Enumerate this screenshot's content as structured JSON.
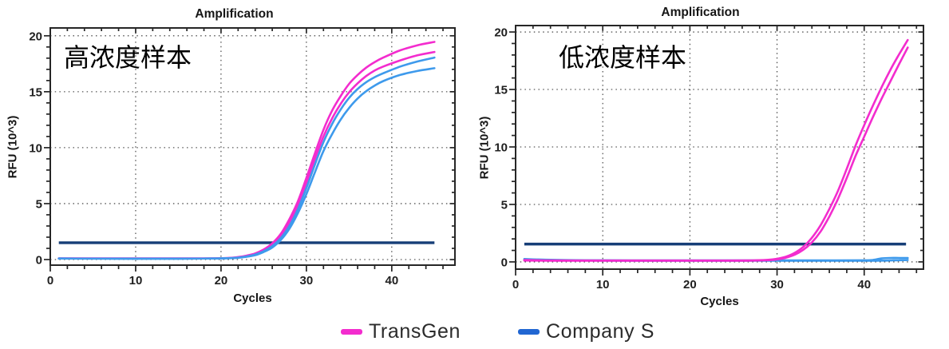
{
  "legend": {
    "items": [
      {
        "label": "TransGen",
        "color": "#f32cce"
      },
      {
        "label": "Company S",
        "color": "#2166d2"
      }
    ]
  },
  "chart_data": [
    {
      "type": "line",
      "title": "Amplification",
      "annotation": "高浓度样本",
      "xlabel": "Cycles",
      "ylabel": "RFU (10^3)",
      "xlim": [
        0,
        47.4
      ],
      "ylim": [
        -0.5,
        20.7
      ],
      "xticks": [
        0,
        10,
        20,
        30,
        40
      ],
      "yticks": [
        0,
        5,
        10,
        15,
        20
      ],
      "x_minor_step": 2,
      "y_minor_step": 1,
      "grid": "dotted-major",
      "threshold": {
        "y": 1.5,
        "x1": 1,
        "x2": 45,
        "color": "#163e77"
      },
      "series": [
        {
          "name": "TransGen rep 1",
          "group": "TransGen",
          "color": "#f32cce",
          "points": [
            [
              1,
              0.1
            ],
            [
              8,
              0.1
            ],
            [
              14,
              0.1
            ],
            [
              19,
              0.11
            ],
            [
              21,
              0.15
            ],
            [
              22,
              0.22
            ],
            [
              23,
              0.35
            ],
            [
              24,
              0.55
            ],
            [
              25,
              0.9
            ],
            [
              26,
              1.45
            ],
            [
              27,
              2.3
            ],
            [
              28,
              3.6
            ],
            [
              29,
              5.2
            ],
            [
              30,
              7.3
            ],
            [
              31,
              9.5
            ],
            [
              32,
              11.6
            ],
            [
              33,
              13.3
            ],
            [
              34,
              14.6
            ],
            [
              35,
              15.7
            ],
            [
              36,
              16.5
            ],
            [
              37,
              17.15
            ],
            [
              38,
              17.65
            ],
            [
              39,
              18.05
            ],
            [
              41,
              18.7
            ],
            [
              43,
              19.15
            ],
            [
              45,
              19.45
            ]
          ]
        },
        {
          "name": "TransGen rep 2",
          "group": "TransGen",
          "color": "#f32cce",
          "points": [
            [
              1,
              0.1
            ],
            [
              8,
              0.09
            ],
            [
              14,
              0.09
            ],
            [
              19,
              0.1
            ],
            [
              21,
              0.14
            ],
            [
              22,
              0.2
            ],
            [
              23,
              0.31
            ],
            [
              24,
              0.5
            ],
            [
              25,
              0.82
            ],
            [
              26,
              1.32
            ],
            [
              27,
              2.1
            ],
            [
              28,
              3.3
            ],
            [
              29,
              4.85
            ],
            [
              30,
              6.85
            ],
            [
              31,
              9.0
            ],
            [
              32,
              11.0
            ],
            [
              33,
              12.6
            ],
            [
              34,
              13.9
            ],
            [
              35,
              14.95
            ],
            [
              36,
              15.75
            ],
            [
              37,
              16.4
            ],
            [
              38,
              16.9
            ],
            [
              39,
              17.25
            ],
            [
              41,
              17.8
            ],
            [
              43,
              18.25
            ],
            [
              45,
              18.55
            ]
          ]
        },
        {
          "name": "Company S rep 1",
          "group": "Company S",
          "color": "#3e9aec",
          "points": [
            [
              1,
              0.09
            ],
            [
              8,
              0.08
            ],
            [
              14,
              0.08
            ],
            [
              19,
              0.09
            ],
            [
              21,
              0.13
            ],
            [
              22,
              0.18
            ],
            [
              23,
              0.28
            ],
            [
              24,
              0.45
            ],
            [
              25,
              0.74
            ],
            [
              26,
              1.2
            ],
            [
              27,
              1.92
            ],
            [
              28,
              3.0
            ],
            [
              29,
              4.5
            ],
            [
              30,
              6.4
            ],
            [
              31,
              8.5
            ],
            [
              32,
              10.5
            ],
            [
              33,
              12.1
            ],
            [
              34,
              13.4
            ],
            [
              35,
              14.45
            ],
            [
              36,
              15.25
            ],
            [
              37,
              15.85
            ],
            [
              38,
              16.3
            ],
            [
              39,
              16.65
            ],
            [
              41,
              17.25
            ],
            [
              43,
              17.7
            ],
            [
              45,
              18.05
            ]
          ]
        },
        {
          "name": "Company S rep 2",
          "group": "Company S",
          "color": "#3e9aec",
          "points": [
            [
              1,
              0.09
            ],
            [
              8,
              0.08
            ],
            [
              14,
              0.08
            ],
            [
              19,
              0.09
            ],
            [
              21,
              0.12
            ],
            [
              22,
              0.16
            ],
            [
              23,
              0.25
            ],
            [
              24,
              0.39
            ],
            [
              25,
              0.68
            ],
            [
              26,
              1.08
            ],
            [
              27,
              1.75
            ],
            [
              28,
              2.75
            ],
            [
              29,
              4.15
            ],
            [
              30,
              5.85
            ],
            [
              31,
              7.8
            ],
            [
              32,
              9.7
            ],
            [
              33,
              11.2
            ],
            [
              34,
              12.5
            ],
            [
              35,
              13.55
            ],
            [
              36,
              14.4
            ],
            [
              37,
              15.05
            ],
            [
              38,
              15.55
            ],
            [
              39,
              15.95
            ],
            [
              41,
              16.5
            ],
            [
              43,
              16.85
            ],
            [
              45,
              17.1
            ]
          ]
        }
      ]
    },
    {
      "type": "line",
      "title": "Amplification",
      "annotation": "低浓度样本",
      "xlabel": "Cycles",
      "ylabel": "RFU (10^3)",
      "xlim": [
        0,
        46.8
      ],
      "ylim": [
        -0.63,
        20.56
      ],
      "xticks": [
        0,
        10,
        20,
        30,
        40
      ],
      "yticks": [
        0,
        5,
        10,
        15,
        20
      ],
      "x_minor_step": 2,
      "y_minor_step": 1,
      "grid": "dotted-major",
      "threshold": {
        "y": 1.55,
        "x1": 1,
        "x2": 44.8,
        "color": "#163e77"
      },
      "series": [
        {
          "name": "Company S rep 1",
          "group": "Company S",
          "color": "#3e9aec",
          "points": [
            [
              1,
              0.25
            ],
            [
              2,
              0.22
            ],
            [
              4,
              0.18
            ],
            [
              7,
              0.15
            ],
            [
              10,
              0.14
            ],
            [
              15,
              0.13
            ],
            [
              20,
              0.13
            ],
            [
              25,
              0.13
            ],
            [
              30,
              0.13
            ],
            [
              35,
              0.13
            ],
            [
              40,
              0.14
            ],
            [
              41,
              0.17
            ],
            [
              42,
              0.3
            ],
            [
              43,
              0.34
            ],
            [
              44,
              0.34
            ],
            [
              45,
              0.34
            ]
          ]
        },
        {
          "name": "Company S rep 2",
          "group": "Company S",
          "color": "#3e9aec",
          "points": [
            [
              1,
              0.2
            ],
            [
              3,
              0.16
            ],
            [
              6,
              0.13
            ],
            [
              10,
              0.11
            ],
            [
              15,
              0.1
            ],
            [
              20,
              0.1
            ],
            [
              25,
              0.1
            ],
            [
              30,
              0.1
            ],
            [
              35,
              0.1
            ],
            [
              40,
              0.1
            ],
            [
              42,
              0.11
            ],
            [
              43,
              0.13
            ],
            [
              44,
              0.15
            ],
            [
              45,
              0.16
            ]
          ]
        },
        {
          "name": "TransGen rep 1",
          "group": "TransGen",
          "color": "#f32cce",
          "points": [
            [
              1,
              0.16
            ],
            [
              4,
              0.13
            ],
            [
              8,
              0.12
            ],
            [
              12,
              0.12
            ],
            [
              16,
              0.12
            ],
            [
              20,
              0.12
            ],
            [
              24,
              0.12
            ],
            [
              27,
              0.13
            ],
            [
              29,
              0.18
            ],
            [
              30,
              0.27
            ],
            [
              31,
              0.45
            ],
            [
              32,
              0.78
            ],
            [
              33,
              1.3
            ],
            [
              34,
              2.1
            ],
            [
              35,
              3.2
            ],
            [
              36,
              4.6
            ],
            [
              37,
              6.2
            ],
            [
              38,
              8.1
            ],
            [
              39,
              10.1
            ],
            [
              40,
              11.9
            ],
            [
              41,
              13.6
            ],
            [
              42,
              15.2
            ],
            [
              43,
              16.7
            ],
            [
              44,
              18.05
            ],
            [
              45,
              19.3
            ]
          ]
        },
        {
          "name": "TransGen rep 2",
          "group": "TransGen",
          "color": "#f32cce",
          "points": [
            [
              1,
              0.12
            ],
            [
              6,
              0.1
            ],
            [
              12,
              0.1
            ],
            [
              18,
              0.1
            ],
            [
              24,
              0.1
            ],
            [
              27,
              0.11
            ],
            [
              29,
              0.15
            ],
            [
              30,
              0.22
            ],
            [
              31,
              0.36
            ],
            [
              32,
              0.62
            ],
            [
              33,
              1.05
            ],
            [
              34,
              1.7
            ],
            [
              35,
              2.65
            ],
            [
              36,
              3.95
            ],
            [
              37,
              5.5
            ],
            [
              38,
              7.3
            ],
            [
              39,
              9.2
            ],
            [
              40,
              10.9
            ],
            [
              41,
              12.6
            ],
            [
              42,
              14.2
            ],
            [
              43,
              15.7
            ],
            [
              44,
              17.2
            ],
            [
              45,
              18.65
            ]
          ]
        }
      ]
    }
  ]
}
